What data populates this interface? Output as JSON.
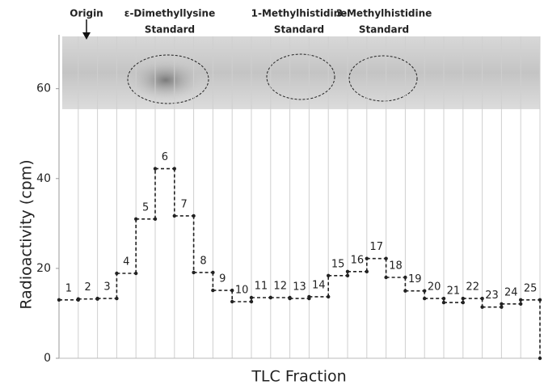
{
  "chart_data": {
    "type": "step",
    "x_label": "TLC Fraction",
    "y_label": "Radioactivity (cpm)",
    "categories": [
      "1",
      "2",
      "3",
      "4",
      "5",
      "6",
      "7",
      "8",
      "9",
      "10",
      "11",
      "12",
      "13",
      "14",
      "15",
      "16",
      "17",
      "18",
      "19",
      "20",
      "21",
      "22",
      "23",
      "24",
      "25"
    ],
    "values": [
      13.0,
      13.2,
      13.3,
      18.9,
      31.0,
      42.2,
      31.7,
      19.1,
      15.1,
      12.6,
      13.5,
      13.5,
      13.3,
      13.7,
      18.4,
      19.3,
      22.2,
      18.0,
      15.0,
      13.3,
      12.4,
      13.3,
      11.4,
      12.1,
      13.0
    ],
    "color": "#222222",
    "xlim": [
      0,
      25
    ],
    "ylim": [
      0,
      72
    ],
    "yticks": [
      0,
      20,
      40,
      60
    ],
    "grid": true,
    "annotations": [
      "Origin",
      "ε-Dimethyllysine",
      "Standard",
      "1-Methylhistidine",
      "Standard",
      "3-Methylhistidine",
      "Standard"
    ]
  }
}
